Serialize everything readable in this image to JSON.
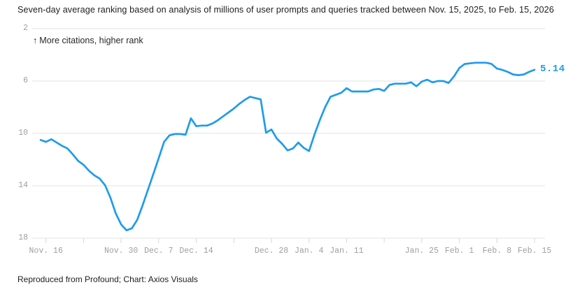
{
  "header": {
    "title": "Seven-day average ranking based on analysis of millions of user prompts and queries tracked between Nov. 15, 2025, to Feb. 15, 2026"
  },
  "annotation": {
    "arrow": "↑",
    "label": "More citations, higher rank"
  },
  "footer": {
    "credit": "Reproduced from Profound; Chart: Axios Visuals"
  },
  "chart_data": {
    "type": "line",
    "title": "Seven-day average ranking based on analysis of millions of user prompts and queries tracked between Nov. 15, 2025, to Feb. 15, 2026",
    "y_axis_inverted": true,
    "ylim": [
      2,
      18
    ],
    "y_ticks": [
      2,
      6,
      10,
      14,
      18
    ],
    "x_start": "Nov. 15, 2025",
    "x_end": "Feb. 15, 2026",
    "cadence": "daily",
    "grid": "horizontal",
    "line_color": "#1e9ceb",
    "end_label": "5.14",
    "x_ticks": [
      {
        "day": 1,
        "label": "Nov. 16"
      },
      {
        "day": 8,
        "label": ""
      },
      {
        "day": 15,
        "label": "Nov. 30"
      },
      {
        "day": 22,
        "label": "Dec. 7"
      },
      {
        "day": 29,
        "label": "Dec. 14"
      },
      {
        "day": 36,
        "label": ""
      },
      {
        "day": 43,
        "label": "Dec. 28"
      },
      {
        "day": 50,
        "label": "Jan. 4"
      },
      {
        "day": 57,
        "label": "Jan. 11"
      },
      {
        "day": 64,
        "label": ""
      },
      {
        "day": 71,
        "label": "Jan. 25"
      },
      {
        "day": 78,
        "label": "Feb. 1"
      },
      {
        "day": 85,
        "label": "Feb. 8"
      },
      {
        "day": 92,
        "label": "Feb. 15"
      }
    ],
    "values": [
      10.5,
      10.65,
      10.45,
      10.7,
      10.95,
      11.15,
      11.6,
      12.1,
      12.4,
      12.85,
      13.2,
      13.45,
      13.95,
      14.9,
      16.1,
      16.95,
      17.4,
      17.25,
      16.6,
      15.5,
      14.3,
      13.1,
      11.9,
      10.65,
      10.15,
      10.05,
      10.05,
      10.1,
      8.85,
      9.45,
      9.4,
      9.4,
      9.25,
      9.0,
      8.7,
      8.4,
      8.1,
      7.75,
      7.45,
      7.2,
      7.3,
      7.4,
      9.95,
      9.7,
      10.4,
      10.8,
      11.3,
      11.15,
      10.7,
      11.1,
      11.35,
      10.1,
      9.0,
      8.0,
      7.2,
      7.05,
      6.9,
      6.55,
      6.8,
      6.8,
      6.8,
      6.8,
      6.65,
      6.6,
      6.75,
      6.3,
      6.2,
      6.2,
      6.2,
      6.1,
      6.4,
      6.05,
      5.9,
      6.1,
      6.0,
      6.0,
      6.15,
      5.65,
      5.0,
      4.7,
      4.65,
      4.6,
      4.6,
      4.6,
      4.7,
      5.05,
      5.15,
      5.3,
      5.5,
      5.55,
      5.5,
      5.3,
      5.14
    ]
  }
}
